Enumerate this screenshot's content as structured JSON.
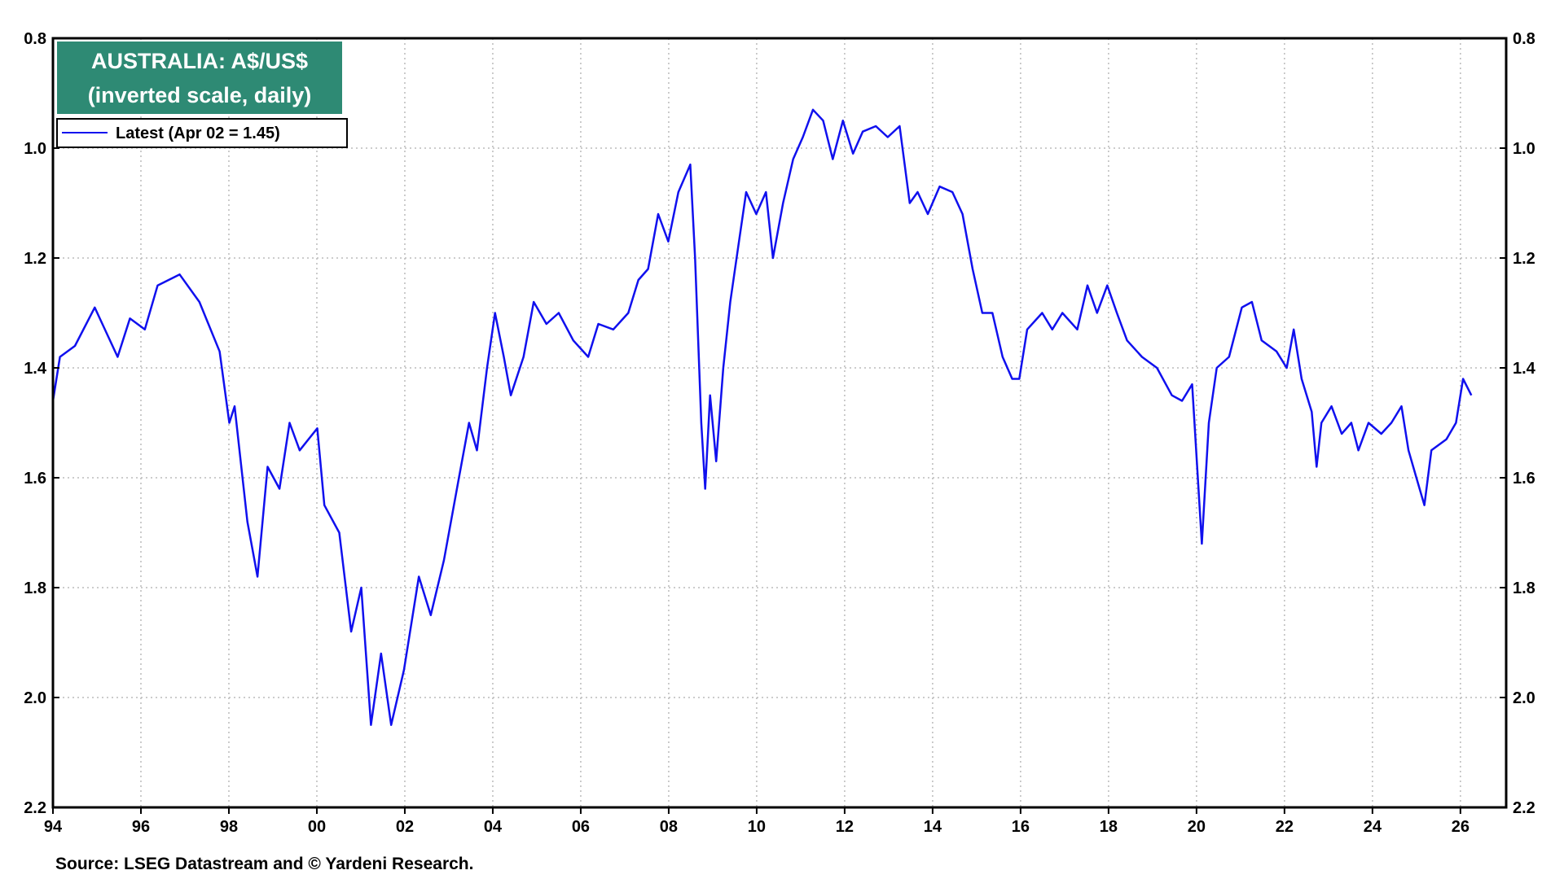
{
  "chart_data": {
    "type": "line",
    "title": [
      "AUSTRALIA: A$/US$",
      "(inverted scale, daily)"
    ],
    "source": "Source: LSEG Datastream and © Yardeni Research.",
    "inverted": true,
    "grid": true,
    "xlim": [
      1994,
      2027.04
    ],
    "xticks": [
      {
        "value": 1994,
        "label": "94"
      },
      {
        "value": 1996,
        "label": "96"
      },
      {
        "value": 1998,
        "label": "98"
      },
      {
        "value": 2000,
        "label": "00"
      },
      {
        "value": 2002,
        "label": "02"
      },
      {
        "value": 2004,
        "label": "04"
      },
      {
        "value": 2006,
        "label": "06"
      },
      {
        "value": 2008,
        "label": "08"
      },
      {
        "value": 2010,
        "label": "10"
      },
      {
        "value": 2012,
        "label": "12"
      },
      {
        "value": 2014,
        "label": "14"
      },
      {
        "value": 2016,
        "label": "16"
      },
      {
        "value": 2018,
        "label": "18"
      },
      {
        "value": 2020,
        "label": "20"
      },
      {
        "value": 2022,
        "label": "22"
      },
      {
        "value": 2024,
        "label": "24"
      },
      {
        "value": 2026,
        "label": "26"
      }
    ],
    "ylim": [
      0.8,
      2.2
    ],
    "yticks": [
      0.8,
      {
        "value": 1,
        "label": "1.0"
      },
      1.2,
      1.4,
      1.6,
      1.8,
      {
        "value": 2,
        "label": "2.0"
      },
      2.2
    ],
    "x": [
      1994.0,
      1994.16,
      1994.5,
      1994.95,
      1995.47,
      1995.75,
      1996.09,
      1996.38,
      1996.88,
      1997.33,
      1997.79,
      1998.01,
      1998.13,
      1998.42,
      1998.65,
      1998.88,
      1999.15,
      1999.38,
      1999.61,
      2000.01,
      2000.17,
      2000.51,
      2000.78,
      2001.01,
      2001.23,
      2001.46,
      2001.69,
      2001.98,
      2002.32,
      2002.59,
      2002.89,
      2003.23,
      2003.46,
      2003.64,
      2003.87,
      2004.05,
      2004.25,
      2004.41,
      2004.7,
      2004.93,
      2005.22,
      2005.5,
      2005.83,
      2006.17,
      2006.4,
      2006.74,
      2007.08,
      2007.31,
      2007.53,
      2007.76,
      2007.99,
      2008.22,
      2008.49,
      2008.6,
      2008.74,
      2008.83,
      2008.94,
      2009.08,
      2009.24,
      2009.4,
      2009.58,
      2009.76,
      2009.99,
      2010.21,
      2010.37,
      2010.6,
      2010.83,
      2011.05,
      2011.28,
      2011.51,
      2011.73,
      2011.96,
      2012.19,
      2012.41,
      2012.71,
      2012.98,
      2013.25,
      2013.48,
      2013.66,
      2013.89,
      2014.16,
      2014.45,
      2014.68,
      2014.91,
      2015.13,
      2015.36,
      2015.59,
      2015.81,
      2015.97,
      2016.15,
      2016.49,
      2016.72,
      2016.95,
      2017.29,
      2017.52,
      2017.74,
      2017.97,
      2018.19,
      2018.42,
      2018.76,
      2019.1,
      2019.44,
      2019.67,
      2019.9,
      2020.12,
      2020.28,
      2020.46,
      2020.74,
      2021.03,
      2021.26,
      2021.48,
      2021.82,
      2022.05,
      2022.21,
      2022.39,
      2022.62,
      2022.73,
      2022.84,
      2023.07,
      2023.3,
      2023.52,
      2023.68,
      2023.91,
      2024.2,
      2024.43,
      2024.66,
      2024.82,
      2025.0,
      2025.18,
      2025.34,
      2025.68,
      2025.9,
      2026.06,
      2026.25
    ],
    "series": [
      {
        "name": "Latest (Apr 02 = 1.45)",
        "color": "#1010ee",
        "values": [
          1.46,
          1.38,
          1.36,
          1.29,
          1.38,
          1.31,
          1.33,
          1.25,
          1.23,
          1.28,
          1.37,
          1.5,
          1.47,
          1.68,
          1.78,
          1.58,
          1.62,
          1.5,
          1.55,
          1.51,
          1.65,
          1.7,
          1.88,
          1.8,
          2.05,
          1.92,
          2.05,
          1.95,
          1.78,
          1.85,
          1.75,
          1.6,
          1.5,
          1.55,
          1.4,
          1.3,
          1.38,
          1.45,
          1.38,
          1.28,
          1.32,
          1.3,
          1.35,
          1.38,
          1.32,
          1.33,
          1.3,
          1.24,
          1.22,
          1.12,
          1.17,
          1.08,
          1.03,
          1.2,
          1.5,
          1.62,
          1.45,
          1.57,
          1.4,
          1.28,
          1.18,
          1.08,
          1.12,
          1.08,
          1.2,
          1.1,
          1.02,
          0.98,
          0.93,
          0.95,
          1.02,
          0.95,
          1.01,
          0.97,
          0.96,
          0.98,
          0.96,
          1.1,
          1.08,
          1.12,
          1.07,
          1.08,
          1.12,
          1.22,
          1.3,
          1.3,
          1.38,
          1.42,
          1.42,
          1.33,
          1.3,
          1.33,
          1.3,
          1.33,
          1.25,
          1.3,
          1.25,
          1.3,
          1.35,
          1.38,
          1.4,
          1.45,
          1.46,
          1.43,
          1.72,
          1.5,
          1.4,
          1.38,
          1.29,
          1.28,
          1.35,
          1.37,
          1.4,
          1.33,
          1.42,
          1.48,
          1.58,
          1.5,
          1.47,
          1.52,
          1.5,
          1.55,
          1.5,
          1.52,
          1.5,
          1.47,
          1.55,
          1.6,
          1.65,
          1.55,
          1.53,
          1.5,
          1.42,
          1.45
        ]
      }
    ]
  }
}
